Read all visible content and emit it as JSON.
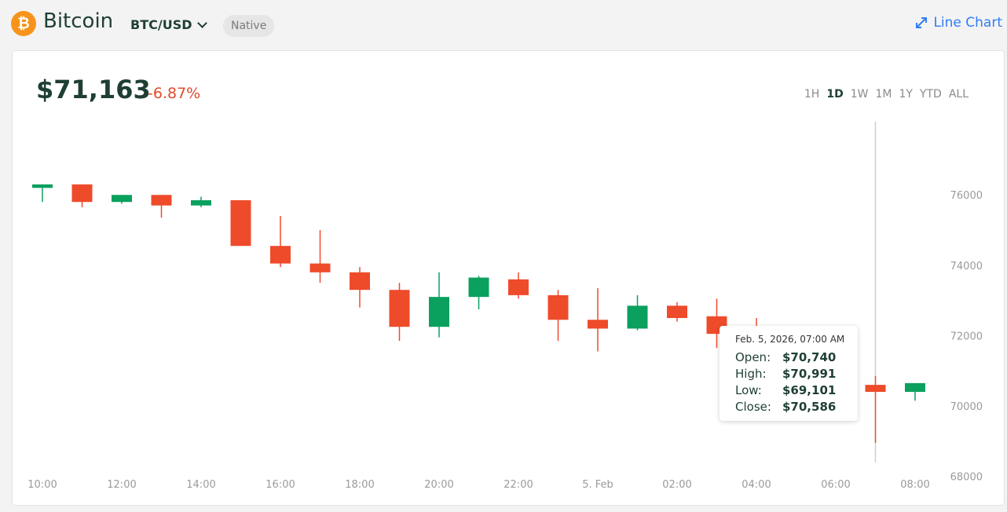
{
  "header": {
    "asset_name": "Bitcoin",
    "pair": "BTC/USD",
    "badge": "Native",
    "line_chart_label": "Line Chart"
  },
  "summary": {
    "price": "$71,163",
    "change": "-6.87%"
  },
  "range_tabs": [
    "1H",
    "1D",
    "1W",
    "1M",
    "1Y",
    "YTD",
    "ALL"
  ],
  "active_range": "1D",
  "tooltip": {
    "date": "Feb. 5, 2026, 07:00 AM",
    "open_label": "Open:",
    "open": "$70,740",
    "high_label": "High:",
    "high": "$70,991",
    "low_label": "Low:",
    "low": "$69,101",
    "close_label": "Close:",
    "close": "$70,586"
  },
  "colors": {
    "up": "#0aa05e",
    "down": "#ee4b2b",
    "accent": "#2f7cf6",
    "orange": "#f7931a"
  },
  "chart_data": {
    "type": "candlestick",
    "x_ticks": [
      "10:00",
      "12:00",
      "14:00",
      "16:00",
      "18:00",
      "20:00",
      "22:00",
      "5. Feb",
      "02:00",
      "04:00",
      "06:00",
      "08:00"
    ],
    "y_ticks": [
      76000,
      74000,
      72000,
      70000,
      68000
    ],
    "ylim": [
      67700,
      77300
    ],
    "candles": [
      {
        "t": "10:00",
        "open": 76200,
        "high": 76300,
        "low": 75800,
        "close": 76300
      },
      {
        "t": "11:00",
        "open": 76300,
        "high": 76300,
        "low": 75650,
        "close": 75800
      },
      {
        "t": "12:00",
        "open": 75800,
        "high": 76000,
        "low": 75750,
        "close": 76000
      },
      {
        "t": "13:00",
        "open": 76000,
        "high": 76000,
        "low": 75350,
        "close": 75700
      },
      {
        "t": "14:00",
        "open": 75700,
        "high": 75950,
        "low": 75650,
        "close": 75850
      },
      {
        "t": "15:00",
        "open": 75850,
        "high": 75850,
        "low": 74550,
        "close": 74550
      },
      {
        "t": "16:00",
        "open": 74550,
        "high": 75400,
        "low": 73950,
        "close": 74050
      },
      {
        "t": "17:00",
        "open": 74050,
        "high": 75000,
        "low": 73500,
        "close": 73800
      },
      {
        "t": "18:00",
        "open": 73800,
        "high": 73950,
        "low": 72800,
        "close": 73300
      },
      {
        "t": "19:00",
        "open": 73300,
        "high": 73500,
        "low": 71850,
        "close": 72250
      },
      {
        "t": "20:00",
        "open": 72250,
        "high": 73800,
        "low": 71950,
        "close": 73100
      },
      {
        "t": "21:00",
        "open": 73100,
        "high": 73700,
        "low": 72750,
        "close": 73650
      },
      {
        "t": "22:00",
        "open": 73600,
        "high": 73800,
        "low": 73050,
        "close": 73150
      },
      {
        "t": "23:00",
        "open": 73150,
        "high": 73300,
        "low": 71850,
        "close": 72450
      },
      {
        "t": "5. Feb",
        "open": 72450,
        "high": 73350,
        "low": 71550,
        "close": 72200
      },
      {
        "t": "01:00",
        "open": 72200,
        "high": 73150,
        "low": 72150,
        "close": 72850
      },
      {
        "t": "02:00",
        "open": 72850,
        "high": 72950,
        "low": 72400,
        "close": 72500
      },
      {
        "t": "03:00",
        "open": 72550,
        "high": 73050,
        "low": 71650,
        "close": 72050
      },
      {
        "t": "04:00",
        "open": 72050,
        "high": 72500,
        "low": 71450,
        "close": 71900
      },
      {
        "t": "07:00",
        "open": 70600,
        "high": 70850,
        "low": 68950,
        "close": 70400
      },
      {
        "t": "08:00",
        "open": 70400,
        "high": 70650,
        "low": 70150,
        "close": 70650
      }
    ],
    "crosshair_at": "07:00"
  }
}
